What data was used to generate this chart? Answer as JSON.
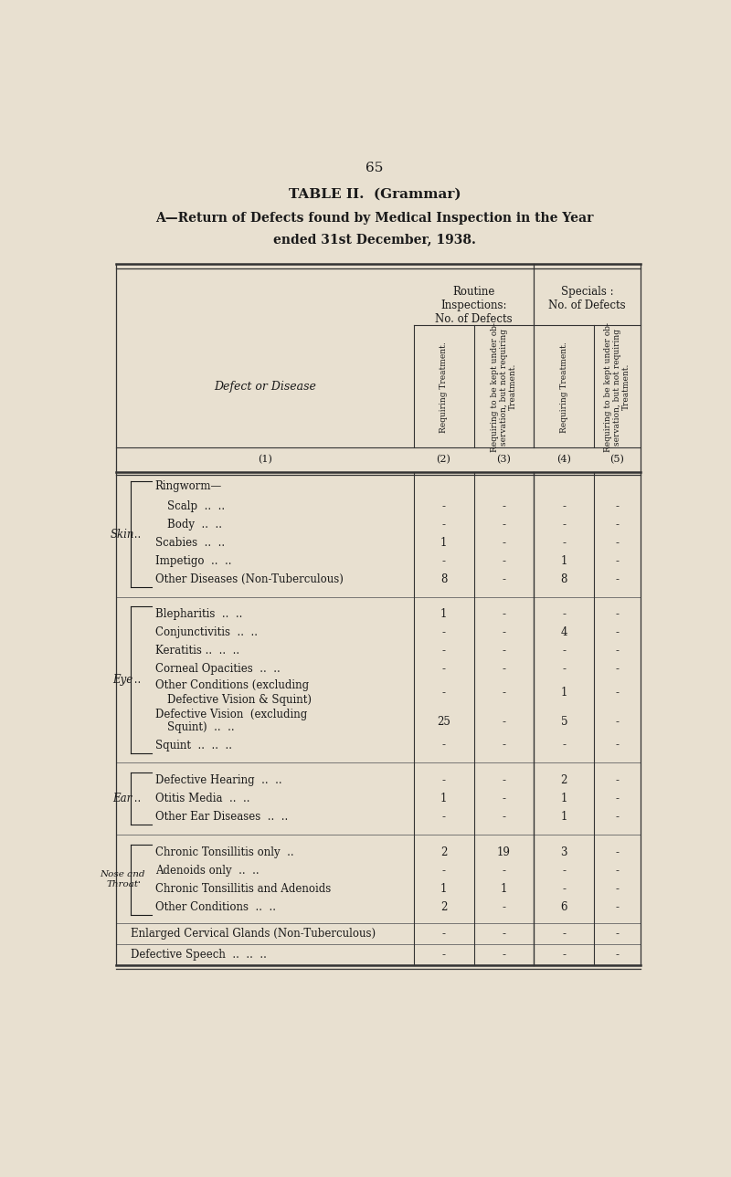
{
  "page_number": "65",
  "title_line1": "TABLE II.  (Grammar)",
  "title_line2": "A—Return of Defects found by Medical Inspection in the Year",
  "title_line3": "ended 31st December, 1938.",
  "bg_color": "#e8e0d0",
  "text_color": "#1a1a1a",
  "col_nums": [
    "(1)",
    "(2)",
    "(3)",
    "(4)",
    "(5)"
  ],
  "sections": [
    {
      "label": "Skin",
      "items": [
        {
          "name": "Ringworm—\n  Scalp  ..  ..",
          "indent": 1,
          "vals": [
            "-",
            "-",
            "-",
            "-"
          ]
        },
        {
          "name": "  Body  ..  ..",
          "indent": 1,
          "vals": [
            "-",
            "-",
            "-",
            "-"
          ]
        },
        {
          "name": "Scabies  ..  ..",
          "indent": 0,
          "vals": [
            "1",
            "-",
            "-",
            "-"
          ]
        },
        {
          "name": "Impetigo  ..  ..",
          "indent": 0,
          "vals": [
            "-",
            "-",
            "1",
            "-"
          ]
        },
        {
          "name": "Other Diseases (Non-Tuberculous)",
          "indent": 0,
          "vals": [
            "8",
            "-",
            "8",
            "-"
          ]
        }
      ]
    },
    {
      "label": "Eye",
      "items": [
        {
          "name": "Blepharitis  ..  ..",
          "indent": 0,
          "vals": [
            "1",
            "-",
            "-",
            "-"
          ]
        },
        {
          "name": "Conjunctivitis  ..  ..",
          "indent": 0,
          "vals": [
            "-",
            "-",
            "4",
            "-"
          ]
        },
        {
          "name": "Keratitis ..  ..  ..",
          "indent": 0,
          "vals": [
            "-",
            "-",
            "-",
            "-"
          ]
        },
        {
          "name": "Corneal Opacities  ..  ..",
          "indent": 0,
          "vals": [
            "-",
            "-",
            "-",
            "-"
          ]
        },
        {
          "name": "Other Conditions (excluding\n    Defective Vision & Squint)",
          "indent": 0,
          "vals": [
            "-",
            "-",
            "1",
            "-"
          ]
        },
        {
          "name": "Defective Vision  (excluding\n    Squint)  ..  ..",
          "indent": 0,
          "vals": [
            "25",
            "-",
            "5",
            "-"
          ]
        },
        {
          "name": "Squint  ..  ..  ..",
          "indent": 0,
          "vals": [
            "-",
            "-",
            "-",
            "-"
          ]
        }
      ]
    },
    {
      "label": "Ear",
      "items": [
        {
          "name": "Defective Hearing  ..  ..",
          "indent": 0,
          "vals": [
            "-",
            "-",
            "2",
            "-"
          ]
        },
        {
          "name": "Otitis Media  ..  ..",
          "indent": 0,
          "vals": [
            "1",
            "-",
            "1",
            "-"
          ]
        },
        {
          "name": "Other Ear Diseases  ..  ..",
          "indent": 0,
          "vals": [
            "-",
            "-",
            "1",
            "-"
          ]
        }
      ]
    },
    {
      "label": "Nose and\nThroat",
      "items": [
        {
          "name": "Chronic Tonsillitis only  ..",
          "indent": 0,
          "vals": [
            "2",
            "19",
            "3",
            "-"
          ]
        },
        {
          "name": "Adenoids only  ..  ..",
          "indent": 0,
          "vals": [
            "-",
            "-",
            "-",
            "-"
          ]
        },
        {
          "name": "Chronic Tonsillitis and Adenoids",
          "indent": 0,
          "vals": [
            "1",
            "1",
            "-",
            "-"
          ]
        },
        {
          "name": "Other Conditions  ..  ..",
          "indent": 0,
          "vals": [
            "2",
            "-",
            "6",
            "-"
          ]
        }
      ]
    }
  ],
  "extra_rows": [
    {
      "name": "Enlarged Cervical Glands (Non-Tuberculous)",
      "vals": [
        "-",
        "-",
        "-",
        "-"
      ]
    },
    {
      "name": "Defective Speech  ..  ..  ..",
      "vals": [
        "-",
        "-",
        "-",
        "-"
      ]
    }
  ]
}
